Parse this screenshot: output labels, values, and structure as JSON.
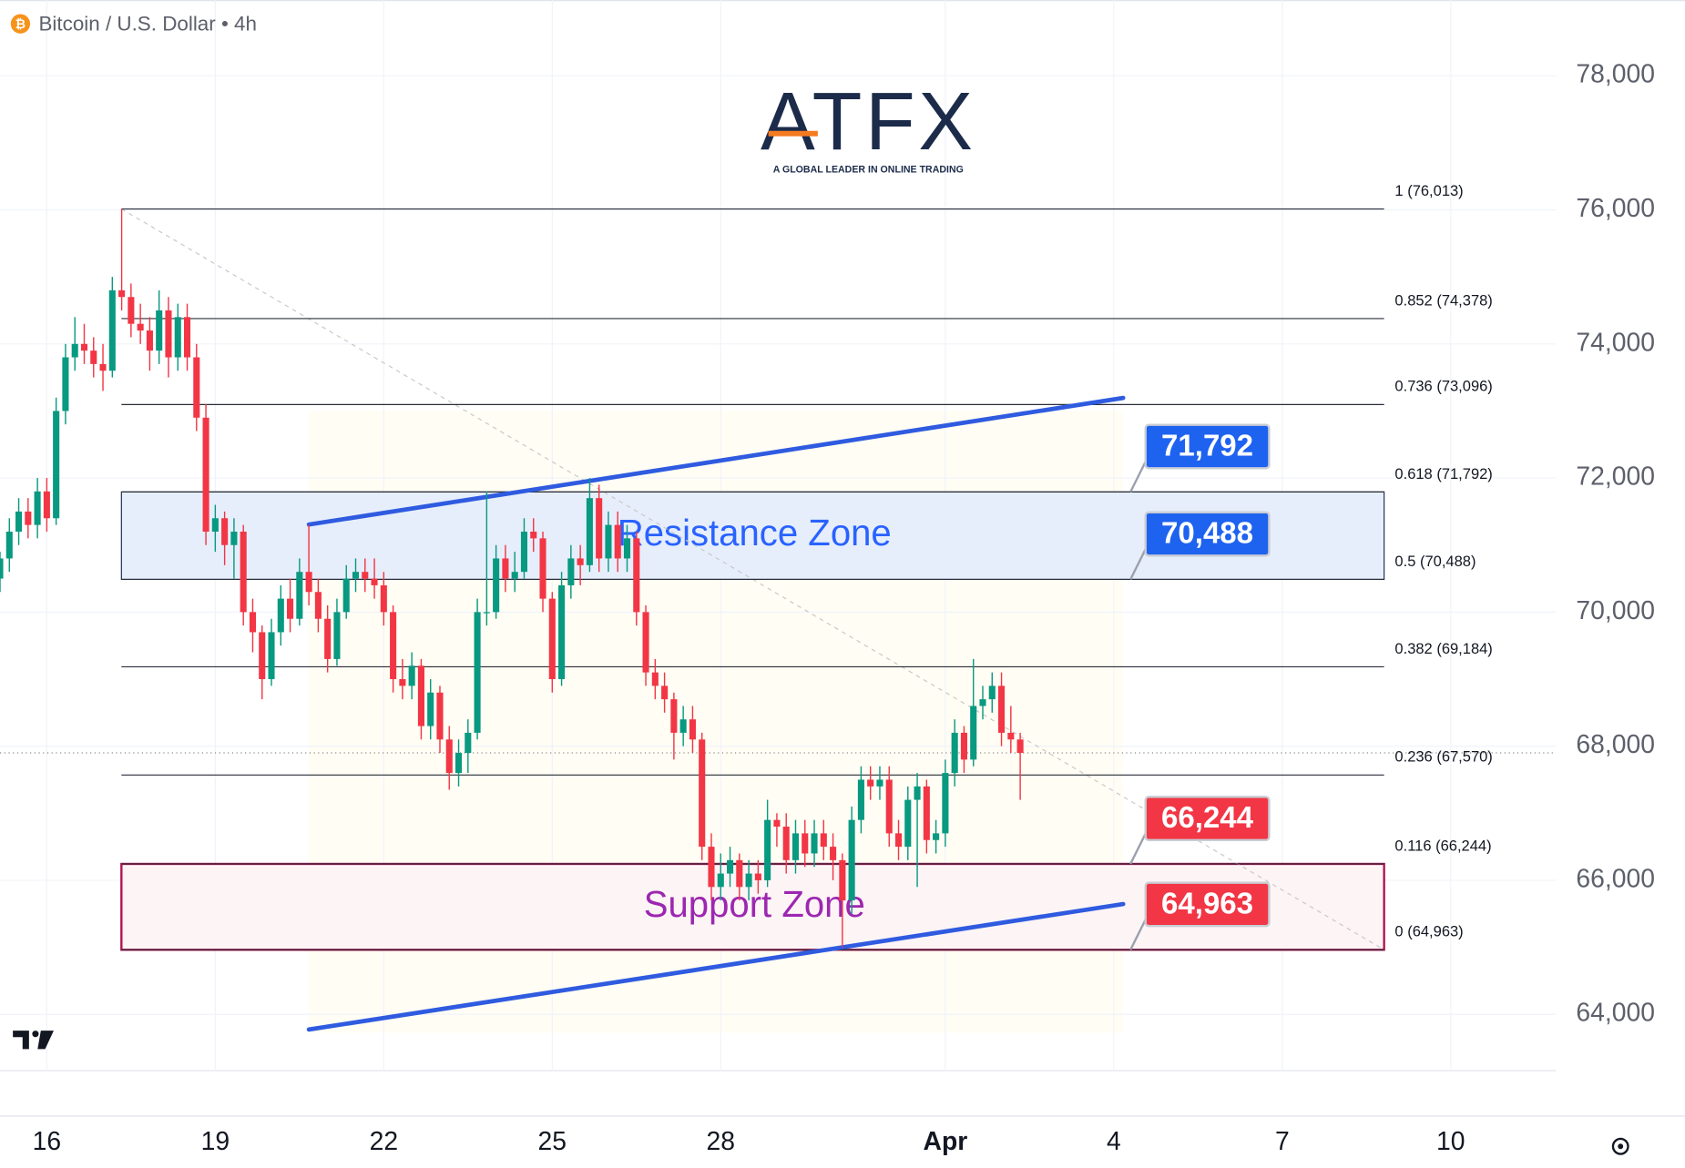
{
  "chart_data": {
    "type": "candlestick",
    "title": "Bitcoin / U.S. Dollar • 4h",
    "icon": "₿",
    "logo": {
      "name": "ATFX",
      "tagline": "A GLOBAL LEADER IN ONLINE TRADING"
    },
    "up_color": "#089981",
    "down_color": "#f23645",
    "candles": [
      [
        -20,
        70500,
        70900,
        70300,
        70800
      ],
      [
        -16,
        70800,
        71400,
        70600,
        71200
      ],
      [
        -12,
        71200,
        71700,
        71000,
        71500
      ],
      [
        -8,
        71500,
        71700,
        71100,
        71300
      ],
      [
        -4,
        71300,
        72000,
        71100,
        71800
      ],
      [
        0,
        71800,
        72000,
        71200,
        71400
      ],
      [
        4,
        71400,
        73200,
        71300,
        73000
      ],
      [
        8,
        73000,
        74000,
        72800,
        73800
      ],
      [
        12,
        73800,
        74400,
        73600,
        74000
      ],
      [
        16,
        74000,
        74300,
        73700,
        73900
      ],
      [
        20,
        73900,
        74100,
        73500,
        73700
      ],
      [
        24,
        73700,
        74000,
        73300,
        73600
      ],
      [
        28,
        73600,
        75000,
        73500,
        74800
      ],
      [
        32,
        74800,
        76013,
        74500,
        74700
      ],
      [
        36,
        74700,
        74900,
        74100,
        74300
      ],
      [
        40,
        74300,
        74600,
        74000,
        74200
      ],
      [
        44,
        74200,
        74400,
        73600,
        73900
      ],
      [
        48,
        73900,
        74800,
        73700,
        74500
      ],
      [
        52,
        74500,
        74700,
        73500,
        73800
      ],
      [
        56,
        73800,
        74600,
        73600,
        74400
      ],
      [
        60,
        74400,
        74600,
        73600,
        73800
      ],
      [
        64,
        73800,
        74000,
        72700,
        72900
      ],
      [
        68,
        72900,
        73100,
        71000,
        71200
      ],
      [
        72,
        71200,
        71600,
        70900,
        71400
      ],
      [
        76,
        71400,
        71500,
        70700,
        71000
      ],
      [
        80,
        71000,
        71400,
        70500,
        71200
      ],
      [
        84,
        71200,
        71300,
        69800,
        70000
      ],
      [
        88,
        70000,
        70200,
        69400,
        69700
      ],
      [
        92,
        69700,
        69800,
        68700,
        69000
      ],
      [
        96,
        69000,
        69900,
        68900,
        69700
      ],
      [
        100,
        69700,
        70400,
        69500,
        70200
      ],
      [
        104,
        70200,
        70500,
        69700,
        69900
      ],
      [
        108,
        69900,
        70800,
        69800,
        70600
      ],
      [
        112,
        70600,
        71300,
        70100,
        70300
      ],
      [
        116,
        70300,
        70500,
        69700,
        69900
      ],
      [
        120,
        69900,
        70100,
        69100,
        69300
      ],
      [
        124,
        69300,
        70200,
        69200,
        70000
      ],
      [
        128,
        70000,
        70700,
        69900,
        70500
      ],
      [
        132,
        70500,
        70800,
        70300,
        70600
      ],
      [
        136,
        70600,
        70800,
        70300,
        70500
      ],
      [
        140,
        70500,
        70800,
        70200,
        70400
      ],
      [
        144,
        70400,
        70600,
        69800,
        70000
      ],
      [
        148,
        70000,
        70100,
        68800,
        69000
      ],
      [
        152,
        69000,
        69300,
        68700,
        68900
      ],
      [
        156,
        68900,
        69400,
        68700,
        69200
      ],
      [
        160,
        69200,
        69300,
        68100,
        68300
      ],
      [
        164,
        68300,
        69000,
        68100,
        68800
      ],
      [
        168,
        68800,
        68900,
        67900,
        68100
      ],
      [
        172,
        68100,
        68300,
        67350,
        67600
      ],
      [
        176,
        67600,
        68100,
        67400,
        67900
      ],
      [
        180,
        67900,
        68400,
        67600,
        68200
      ],
      [
        184,
        68200,
        70200,
        68100,
        70000
      ],
      [
        188,
        70000,
        71800,
        69800,
        70000
      ],
      [
        192,
        70000,
        71000,
        69900,
        70800
      ],
      [
        196,
        70800,
        71000,
        70300,
        70500
      ],
      [
        200,
        70500,
        70900,
        70300,
        70600
      ],
      [
        204,
        70600,
        71400,
        70500,
        71200
      ],
      [
        208,
        71200,
        71400,
        70900,
        71100
      ],
      [
        212,
        71100,
        71200,
        70000,
        70200
      ],
      [
        216,
        70200,
        70300,
        68800,
        69000
      ],
      [
        220,
        69000,
        70600,
        68900,
        70400
      ],
      [
        224,
        70400,
        71000,
        70200,
        70800
      ],
      [
        228,
        70800,
        71000,
        70400,
        70700
      ],
      [
        232,
        70700,
        72000,
        70600,
        71700
      ],
      [
        236,
        71700,
        71900,
        70600,
        70800
      ],
      [
        240,
        70800,
        71500,
        70600,
        71300
      ],
      [
        244,
        71300,
        71500,
        70600,
        70800
      ],
      [
        248,
        70800,
        71300,
        70600,
        71100
      ],
      [
        252,
        71100,
        71200,
        69800,
        70000
      ],
      [
        256,
        70000,
        70100,
        68900,
        69100
      ],
      [
        260,
        69100,
        69300,
        68700,
        68900
      ],
      [
        264,
        68900,
        69100,
        68500,
        68700
      ],
      [
        268,
        68700,
        68800,
        67800,
        68200
      ],
      [
        272,
        68200,
        68600,
        68000,
        68400
      ],
      [
        276,
        68400,
        68600,
        67900,
        68100
      ],
      [
        280,
        68100,
        68200,
        66300,
        66500
      ],
      [
        284,
        66500,
        66700,
        65700,
        65900
      ],
      [
        288,
        65900,
        66400,
        65700,
        66100
      ],
      [
        292,
        66100,
        66500,
        65900,
        66300
      ],
      [
        296,
        66300,
        66400,
        65700,
        65900
      ],
      [
        300,
        65900,
        66300,
        65700,
        66100
      ],
      [
        304,
        66100,
        66300,
        65800,
        66000
      ],
      [
        308,
        66000,
        67200,
        65900,
        66900
      ],
      [
        312,
        66900,
        67000,
        66500,
        66800
      ],
      [
        316,
        66800,
        67000,
        66100,
        66300
      ],
      [
        320,
        66300,
        66900,
        66100,
        66700
      ],
      [
        324,
        66700,
        66900,
        66200,
        66400
      ],
      [
        328,
        66400,
        66900,
        66200,
        66700
      ],
      [
        332,
        66700,
        66900,
        66300,
        66500
      ],
      [
        336,
        66500,
        66700,
        66000,
        66300
      ],
      [
        340,
        66300,
        66400,
        65000,
        65700
      ],
      [
        344,
        65700,
        67100,
        65500,
        66900
      ],
      [
        348,
        66900,
        67700,
        66700,
        67500
      ],
      [
        352,
        67500,
        67700,
        67200,
        67400
      ],
      [
        356,
        67400,
        67700,
        67200,
        67500
      ],
      [
        360,
        67500,
        67700,
        66500,
        66700
      ],
      [
        364,
        66700,
        66900,
        66300,
        66500
      ],
      [
        368,
        66500,
        67400,
        66300,
        67200
      ],
      [
        372,
        67200,
        67600,
        65900,
        67400
      ],
      [
        376,
        67400,
        67500,
        66400,
        66600
      ],
      [
        380,
        66600,
        66900,
        66400,
        66700
      ],
      [
        384,
        66700,
        67800,
        66500,
        67600
      ],
      [
        388,
        67600,
        68400,
        67400,
        68200
      ],
      [
        392,
        68200,
        68300,
        67600,
        67800
      ],
      [
        396,
        67800,
        69300,
        67700,
        68600
      ],
      [
        400,
        68600,
        68900,
        68400,
        68700
      ],
      [
        404,
        68700,
        69100,
        68500,
        68900
      ],
      [
        408,
        68900,
        69100,
        68000,
        68200
      ],
      [
        412,
        68200,
        68600,
        67900,
        68100
      ],
      [
        416,
        68100,
        68200,
        67200,
        67900
      ]
    ],
    "xlim": [
      -20,
      645
    ],
    "xticks": [
      {
        "value": 0,
        "label": "16"
      },
      {
        "value": 72,
        "label": "19"
      },
      {
        "value": 144,
        "label": "22"
      },
      {
        "value": 216,
        "label": "25"
      },
      {
        "value": 288,
        "label": "28"
      },
      {
        "value": 384,
        "label": "Apr"
      },
      {
        "value": 456,
        "label": "4"
      },
      {
        "value": 528,
        "label": "7"
      },
      {
        "value": 600,
        "label": "10"
      }
    ],
    "ylim": [
      63160,
      79130
    ],
    "yticks": [
      {
        "value": 64000,
        "label": "64,000"
      },
      {
        "value": 66000,
        "label": "66,000"
      },
      {
        "value": 68000,
        "label": "68,000"
      },
      {
        "value": 70000,
        "label": "70,000"
      },
      {
        "value": 72000,
        "label": "72,000"
      },
      {
        "value": 74000,
        "label": "74,000"
      },
      {
        "value": 76000,
        "label": "76,000"
      },
      {
        "value": 78000,
        "label": "78,000"
      }
    ],
    "grid": true,
    "fib_levels": [
      {
        "value": 76013,
        "label": "1 (76,013)"
      },
      {
        "value": 74378,
        "label": "0.852 (74,378)"
      },
      {
        "value": 73096,
        "label": "0.736 (73,096)"
      },
      {
        "value": 71792,
        "label": "0.618 (71,792)"
      },
      {
        "value": 70488,
        "label": "0.5 (70,488)"
      },
      {
        "value": 69184,
        "label": "0.382 (69,184)"
      },
      {
        "value": 67570,
        "label": "0.236 (67,570)"
      },
      {
        "value": 66244,
        "label": "0.116 (66,244)"
      },
      {
        "value": 64963,
        "label": "0 (64,963)"
      }
    ],
    "zones": [
      {
        "name": "Resistance Zone",
        "range": [
          70488,
          71792
        ],
        "color": "#2962ff",
        "fill": "#e6eefb",
        "border": "#1f2f55"
      },
      {
        "name": "Support Zone",
        "range": [
          64963,
          66244
        ],
        "color": "#9c27b0",
        "fill": "#fdf4f6",
        "border": "#b0124f"
      }
    ],
    "price_labels": {
      "values": [
        71792,
        70488,
        66244,
        64963
      ],
      "value_labels": [
        "71,792",
        "70,488",
        "66,244",
        "64,963"
      ],
      "colors": [
        "#1e62f0",
        "#1e62f0",
        "#f23645",
        "#f23645"
      ]
    },
    "trendlines": [
      {
        "x": [
          112,
          460
        ],
        "values": [
          71306,
          73194
        ],
        "color": "#2f5be0"
      },
      {
        "x": [
          112,
          460
        ],
        "values": [
          63774,
          65645
        ],
        "color": "#2f5be0"
      }
    ]
  }
}
